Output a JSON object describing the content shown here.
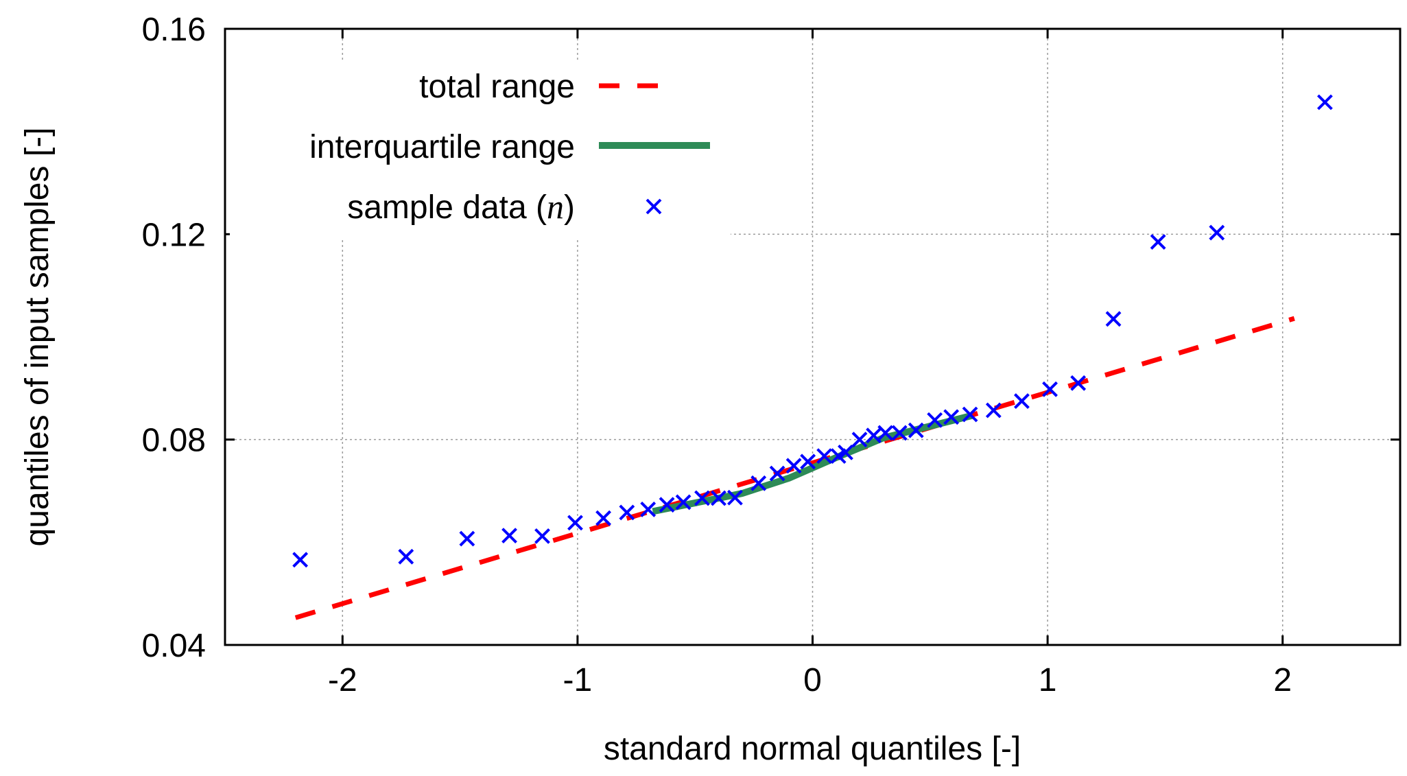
{
  "chart_data": {
    "type": "scatter",
    "title": "",
    "xlabel": "standard normal quantiles [-]",
    "ylabel": "quantiles of input samples [-]",
    "xlim": [
      -2.5,
      2.5
    ],
    "ylim": [
      0.04,
      0.16
    ],
    "x_ticks": [
      -2,
      -1,
      0,
      1,
      2
    ],
    "x_tick_labels": [
      "-2",
      "-1",
      "0",
      "1",
      "2"
    ],
    "y_ticks": [
      0.04,
      0.08,
      0.12,
      0.16
    ],
    "y_tick_labels": [
      "0.04",
      "0.08",
      "0.12",
      "0.16"
    ],
    "grid": true,
    "legend": {
      "position": "top-left",
      "entries": [
        {
          "label": "total range",
          "style": "dashed-line",
          "color": "#ff0000"
        },
        {
          "label": "interquartile range",
          "style": "solid-line",
          "color": "#2e8b57"
        },
        {
          "label": "sample data (n)",
          "label_prefix": "sample data (",
          "label_var": "n",
          "label_suffix": ")",
          "style": "x-marker",
          "color": "#0000ff"
        }
      ]
    },
    "series": [
      {
        "name": "total range",
        "kind": "line",
        "style": "dashed",
        "color": "#ff0000",
        "x": [
          -2.2,
          2.05
        ],
        "y": [
          0.0453,
          0.1036
        ]
      },
      {
        "name": "interquartile range",
        "kind": "line",
        "style": "solid",
        "color": "#2e8b57",
        "x": [
          -0.68,
          -0.3,
          -0.1,
          0.1,
          0.3,
          0.68
        ],
        "y": [
          0.066,
          0.0695,
          0.0725,
          0.0765,
          0.0803,
          0.0847
        ]
      },
      {
        "name": "sample data (n)",
        "kind": "scatter",
        "marker": "x",
        "color": "#0000ff",
        "x": [
          -2.18,
          -1.73,
          -1.47,
          -1.29,
          -1.15,
          -1.01,
          -0.89,
          -0.79,
          -0.7,
          -0.62,
          -0.55,
          -0.47,
          -0.4,
          -0.33,
          -0.23,
          -0.15,
          -0.08,
          -0.02,
          0.05,
          0.11,
          0.14,
          0.2,
          0.26,
          0.31,
          0.37,
          0.44,
          0.52,
          0.59,
          0.67,
          0.77,
          0.89,
          1.01,
          1.13,
          1.28,
          1.47,
          1.72,
          2.18
        ],
        "y": [
          0.0566,
          0.0572,
          0.0607,
          0.0613,
          0.0612,
          0.0638,
          0.0647,
          0.0658,
          0.0664,
          0.0673,
          0.0678,
          0.0686,
          0.0686,
          0.0687,
          0.0715,
          0.0734,
          0.0749,
          0.0757,
          0.0768,
          0.0768,
          0.0775,
          0.08,
          0.0808,
          0.0813,
          0.0813,
          0.0818,
          0.0838,
          0.0844,
          0.0849,
          0.0857,
          0.0875,
          0.0898,
          0.091,
          0.1035,
          0.1185,
          0.1203,
          0.1457
        ]
      }
    ]
  }
}
